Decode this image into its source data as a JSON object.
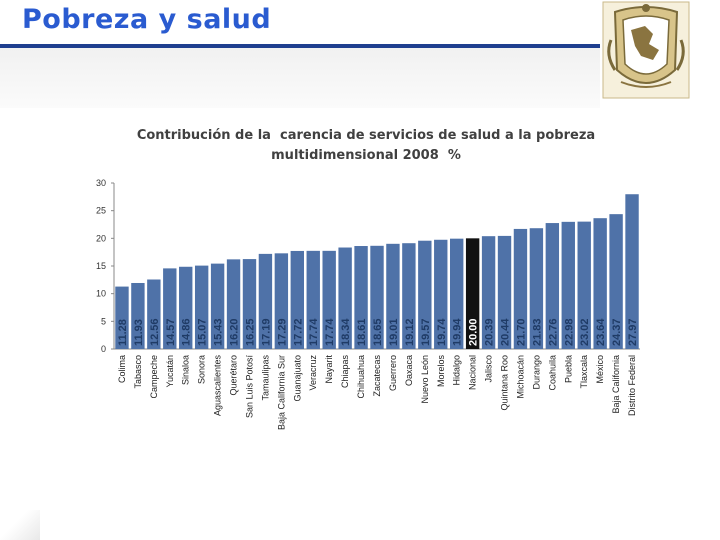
{
  "slide": {
    "title": "Pobreza y salud",
    "logo": "unam-seal-icon"
  },
  "colors": {
    "bar": "#4f72a8",
    "bar_highlight": "#111111",
    "title_blue": "#2a5bd0",
    "rule_blue": "#1f3f8f",
    "label_on_bar": "#1f3b66"
  },
  "chart_data": {
    "type": "bar",
    "title_line1": "Contribución de la  carencia de servicios de salud a la pobreza",
    "title_line2": "multidimensional 2008  %",
    "ylim": [
      0,
      30
    ],
    "yticks": [
      "0",
      "5",
      "10",
      "15",
      "20",
      "25",
      "30"
    ],
    "grid": false,
    "highlight": "Nacional",
    "categories": [
      "Colima",
      "Tabasco",
      "Campeche",
      "Yucatán",
      "Sinaloa",
      "Sonora",
      "Aguascalientes",
      "Querétaro",
      "San Luis Potosí",
      "Tamaulipas",
      "Baja California Sur",
      "Guanajuato",
      "Veracruz",
      "Nayarit",
      "Chiapas",
      "Chihuahua",
      "Zacatecas",
      "Guerrero",
      "Oaxaca",
      "Nuevo León",
      "Morelos",
      "Hidalgo",
      "Nacional",
      "Jalisco",
      "Quintana Roo",
      "Michoacán",
      "Durango",
      "Coahuila",
      "Puebla",
      "Tlaxcala",
      "México",
      "Baja California",
      "Distrito Federal"
    ],
    "values": [
      11.28,
      11.93,
      12.56,
      14.57,
      14.86,
      15.07,
      15.43,
      16.2,
      16.25,
      17.19,
      17.29,
      17.72,
      17.74,
      17.74,
      18.34,
      18.61,
      18.65,
      19.01,
      19.12,
      19.57,
      19.74,
      19.94,
      20.0,
      20.39,
      20.44,
      21.7,
      21.83,
      22.76,
      22.98,
      23.02,
      23.64,
      24.37,
      27.97
    ],
    "value_labels": [
      "11.28",
      "11.93",
      "12.56",
      "14.57",
      "14.86",
      "15.07",
      "15.43",
      "16.20",
      "16.25",
      "17.19",
      "17.29",
      "17.72",
      "17.74",
      "17.74",
      "18.34",
      "18.61",
      "18.65",
      "19.01",
      "19.12",
      "19.57",
      "19.74",
      "19.94",
      "20.00",
      "20.39",
      "20.44",
      "21.70",
      "21.83",
      "22.76",
      "22.98",
      "23.02",
      "23.64",
      "24.37",
      "27.97"
    ]
  }
}
